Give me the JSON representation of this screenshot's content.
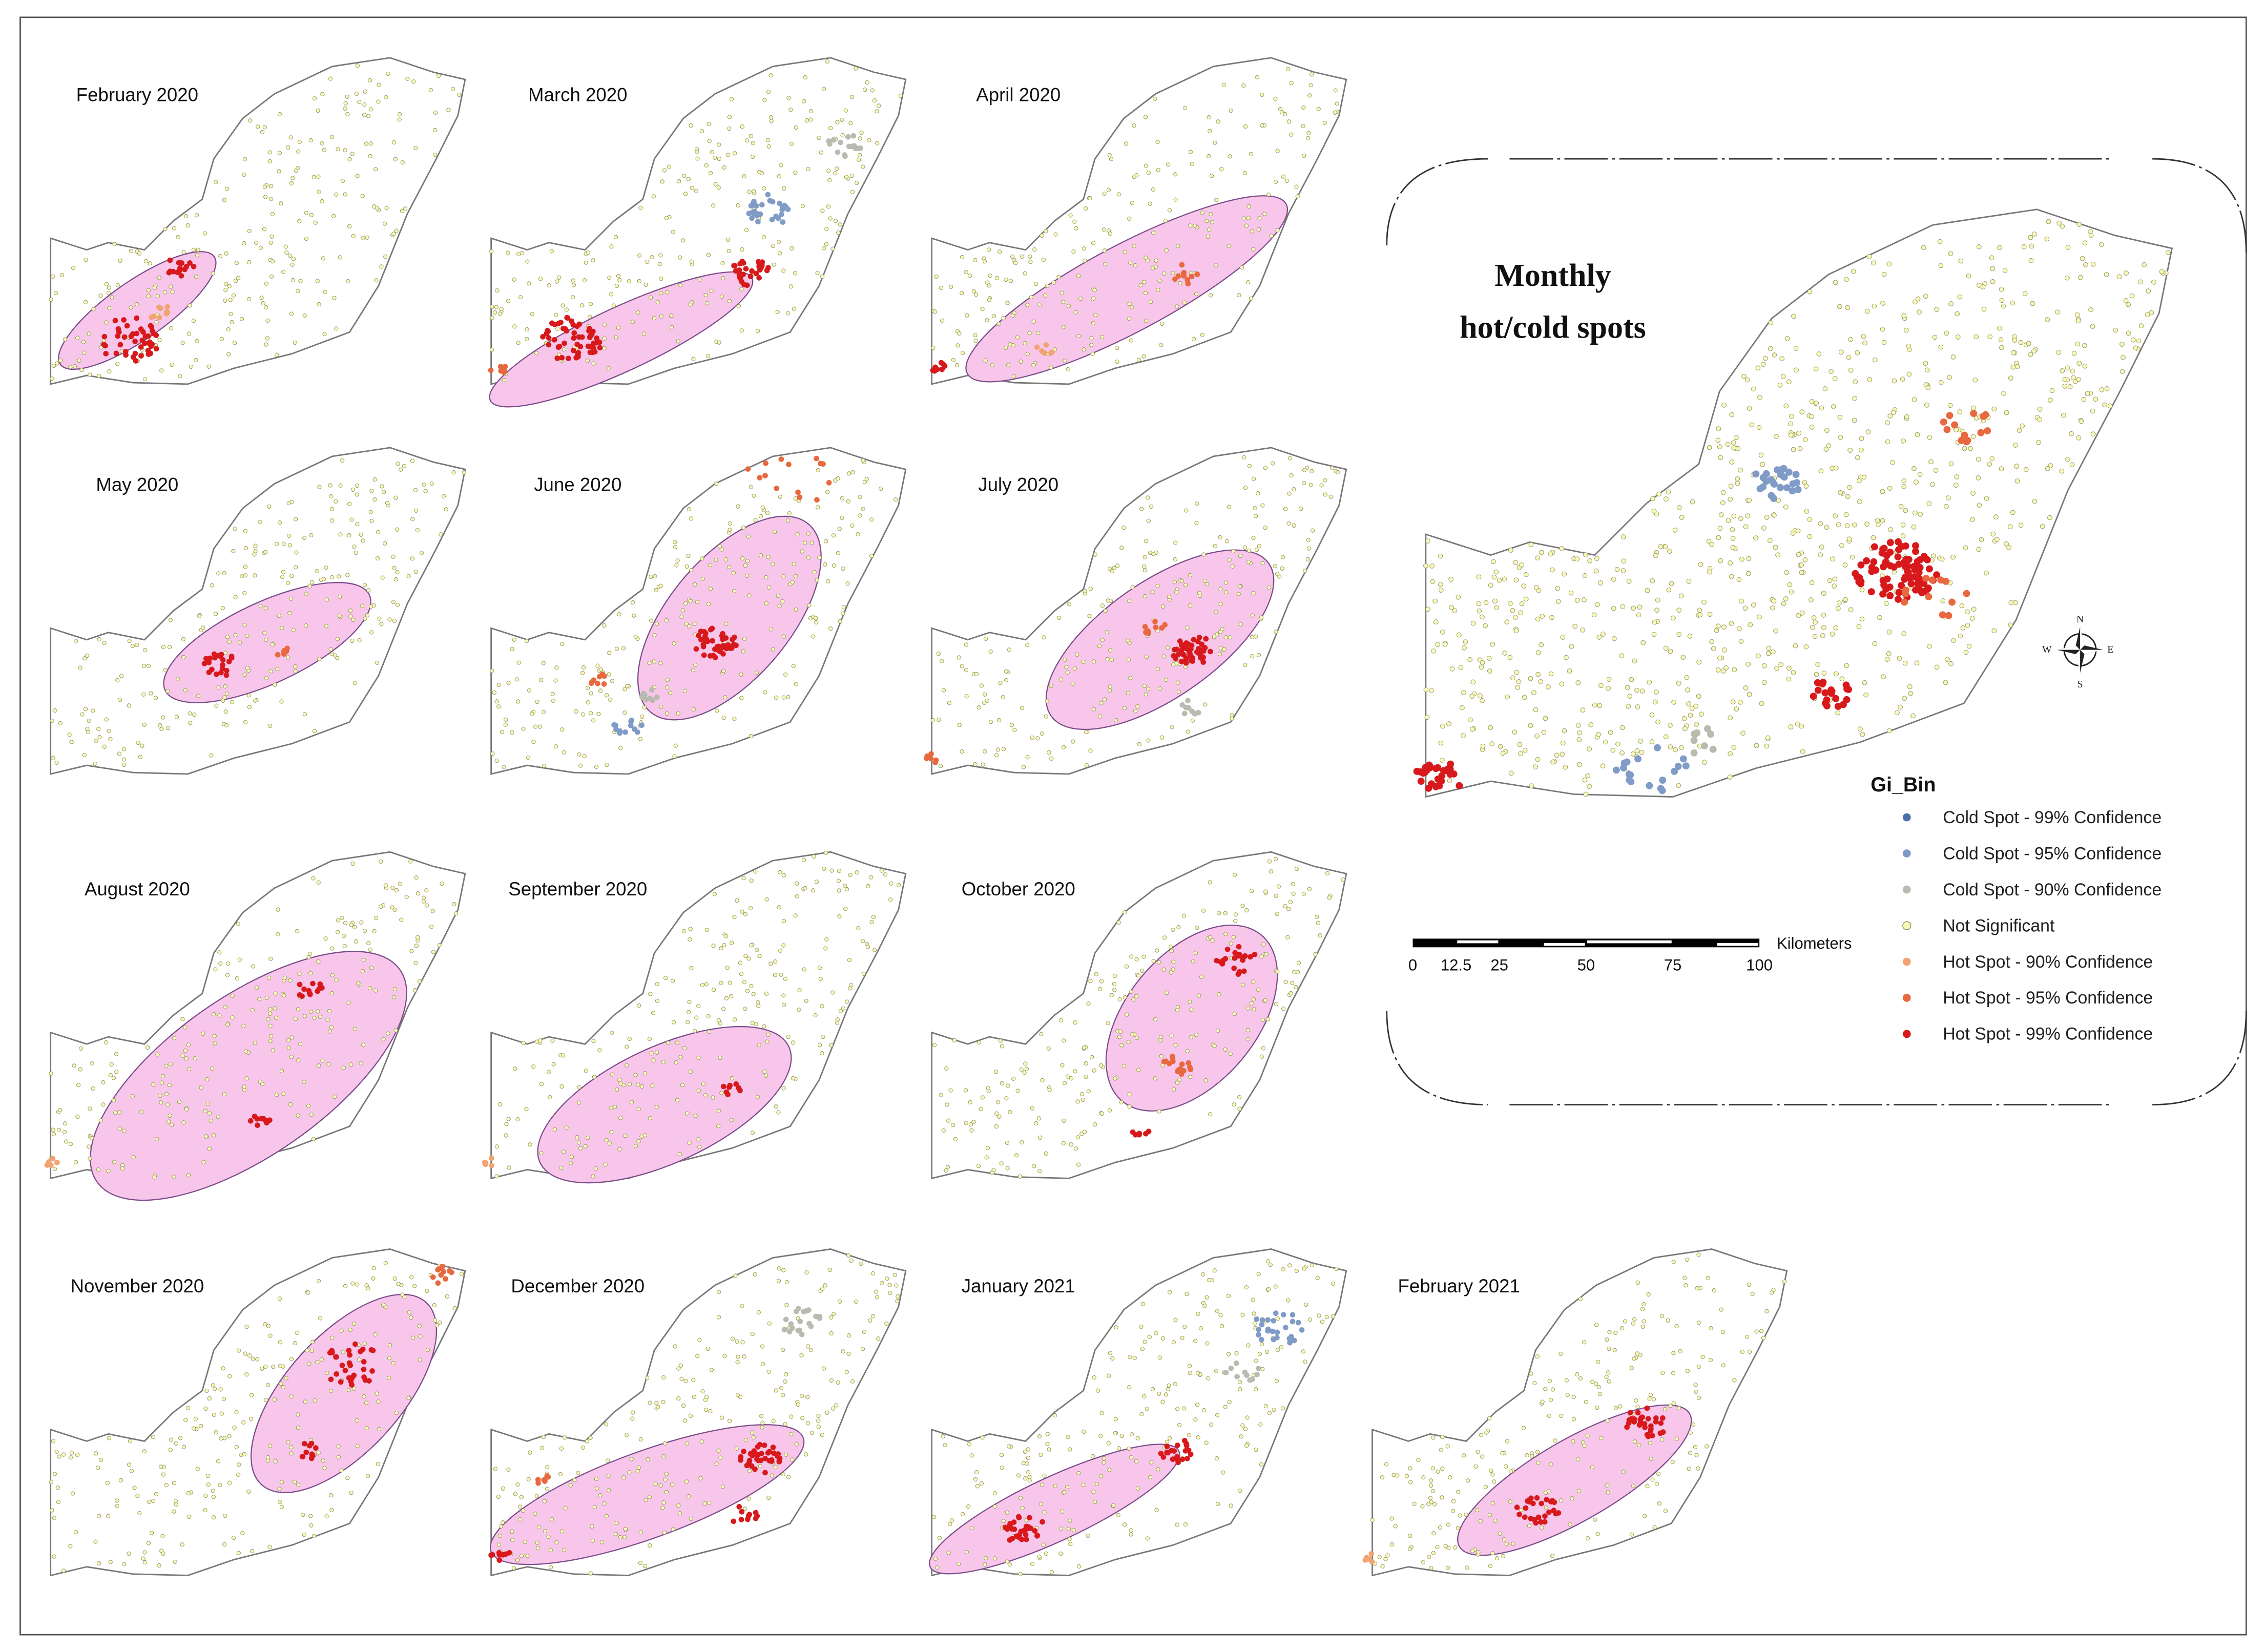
{
  "panels": [
    {
      "title": "February 2020"
    },
    {
      "title": "March 2020"
    },
    {
      "title": "April 2020"
    },
    {
      "title": "May 2020"
    },
    {
      "title": "June 2020"
    },
    {
      "title": "July 2020"
    },
    {
      "title": "August 2020"
    },
    {
      "title": "September 2020"
    },
    {
      "title": "October 2020"
    },
    {
      "title": "November 2020"
    },
    {
      "title": "December 2020"
    },
    {
      "title": "January 2021"
    },
    {
      "title": "February 2021"
    }
  ],
  "main_map": {
    "title_lines": [
      "Monthly",
      "hot/cold spots"
    ],
    "compass": {
      "n": "N",
      "e": "E",
      "s": "S",
      "w": "W"
    }
  },
  "legend": {
    "title": "Gi_Bin",
    "items": [
      {
        "label": "Cold Spot - 99% Confidence",
        "color": "#4a6ea9"
      },
      {
        "label": "Cold Spot - 95% Confidence",
        "color": "#7f9bc6"
      },
      {
        "label": "Cold Spot - 90% Confidence",
        "color": "#b9bbb0"
      },
      {
        "label": "Not Significant",
        "color": "#f8f8b8"
      },
      {
        "label": "Hot Spot - 90% Confidence",
        "color": "#f2a374"
      },
      {
        "label": "Hot Spot - 95% Confidence",
        "color": "#e8683f"
      },
      {
        "label": "Hot Spot - 99% Confidence",
        "color": "#d7191c"
      }
    ]
  },
  "scale_bar": {
    "unit": "Kilometers",
    "labels": [
      "0",
      "12.5",
      "25",
      "50",
      "75",
      "100"
    ]
  }
}
